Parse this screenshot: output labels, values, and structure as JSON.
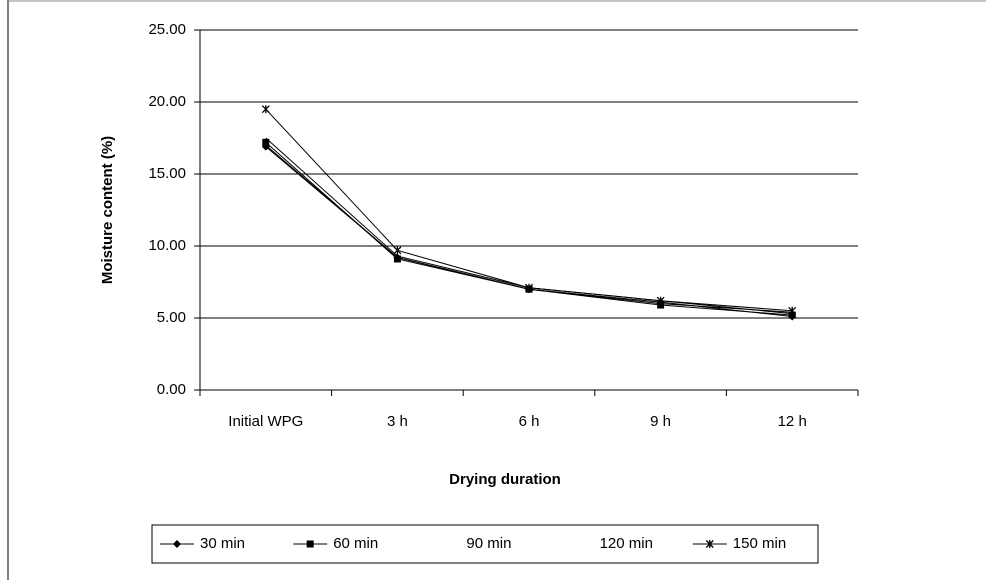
{
  "chart_data": {
    "type": "line",
    "x_label": "Drying duration",
    "y_label": "Moisture content (%)",
    "categories": [
      "Initial WPG",
      "3 h",
      "6 h",
      "9 h",
      "12 h"
    ],
    "series": [
      {
        "name": "30 min",
        "color": "#000000",
        "marker": "diamond",
        "values": [
          16.9,
          9.2,
          7.0,
          6.1,
          5.1
        ]
      },
      {
        "name": "60 min",
        "color": "#000000",
        "marker": "square",
        "values": [
          17.2,
          9.1,
          7.0,
          5.9,
          5.2
        ]
      },
      {
        "name": "90 min",
        "color": "#000000",
        "marker": "none",
        "values": [
          17.5,
          9.3,
          7.1,
          6.2,
          5.3
        ]
      },
      {
        "name": "120 min",
        "color": "#000000",
        "marker": "none",
        "values": [
          17.0,
          9.2,
          7.0,
          6.0,
          5.4
        ]
      },
      {
        "name": "150 min",
        "color": "#000000",
        "marker": "x",
        "values": [
          19.5,
          9.7,
          7.1,
          6.2,
          5.5
        ]
      }
    ],
    "ylim": [
      0,
      25
    ],
    "yticks": [
      {
        "value": 0,
        "label": "0.00"
      },
      {
        "value": 5,
        "label": "5.00"
      },
      {
        "value": 10,
        "label": "10.00"
      },
      {
        "value": 15,
        "label": "15.00"
      },
      {
        "value": 20,
        "label": "20.00"
      },
      {
        "value": 25,
        "label": "25.00"
      }
    ],
    "grid": true,
    "legend": "bottom"
  }
}
